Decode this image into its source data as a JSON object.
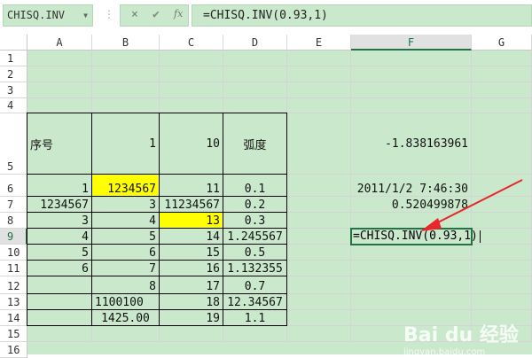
{
  "toolbar": {
    "name_box": "CHISQ.INV",
    "cancel_icon": "×",
    "enter_icon": "✔",
    "fx_label": "fx",
    "formula": "=CHISQ.INV(0.93,1)"
  },
  "columns": [
    "A",
    "B",
    "C",
    "D",
    "E",
    "F",
    "G"
  ],
  "selected_column": "F",
  "rows": [
    "1",
    "2",
    "3",
    "4",
    "5",
    "6",
    "7",
    "8",
    "9",
    "10",
    "11",
    "12",
    "13",
    "14",
    "15",
    "16"
  ],
  "selected_row": "9",
  "cells": {
    "A5": "序号",
    "B5": "1",
    "C5": "10",
    "D5": "弧度",
    "F5": "-1.838163961",
    "A6": "1",
    "B6": "1234567",
    "C6": "11",
    "D6": "0.1",
    "F6": "2011/1/2 7:46:30",
    "A7": "1234567",
    "B7": "3",
    "C7": "11234567",
    "D7": "0.2",
    "F7": "0.520499878",
    "A8": "3",
    "B8": "4",
    "C8": "13",
    "D8": "0.3",
    "A9": "4",
    "B9": "5",
    "C9": "14",
    "D9": "1.245567",
    "F9": "=CHISQ.INV(0.93,1)",
    "A10": "5",
    "B10": "6",
    "C10": "15",
    "D10": "0.5",
    "A11": "6",
    "B11": "7",
    "C11": "16",
    "D11": "1.132355",
    "B12": "8",
    "C12": "17",
    "D12": "0.7",
    "B13": "1100100",
    "C13": "18",
    "D13": "12.34567",
    "B14": "1425.00",
    "C14": "19",
    "D14": "1.1"
  },
  "highlighted_cells": [
    "B6",
    "C8"
  ],
  "colors": {
    "sheet_bg": "#cae8cc",
    "highlight": "#ffff00",
    "accent": "#217346",
    "arrow": "#e8262b"
  },
  "watermark": {
    "brand": "Bai du 经验",
    "url": "jingyan.baidu.com"
  }
}
